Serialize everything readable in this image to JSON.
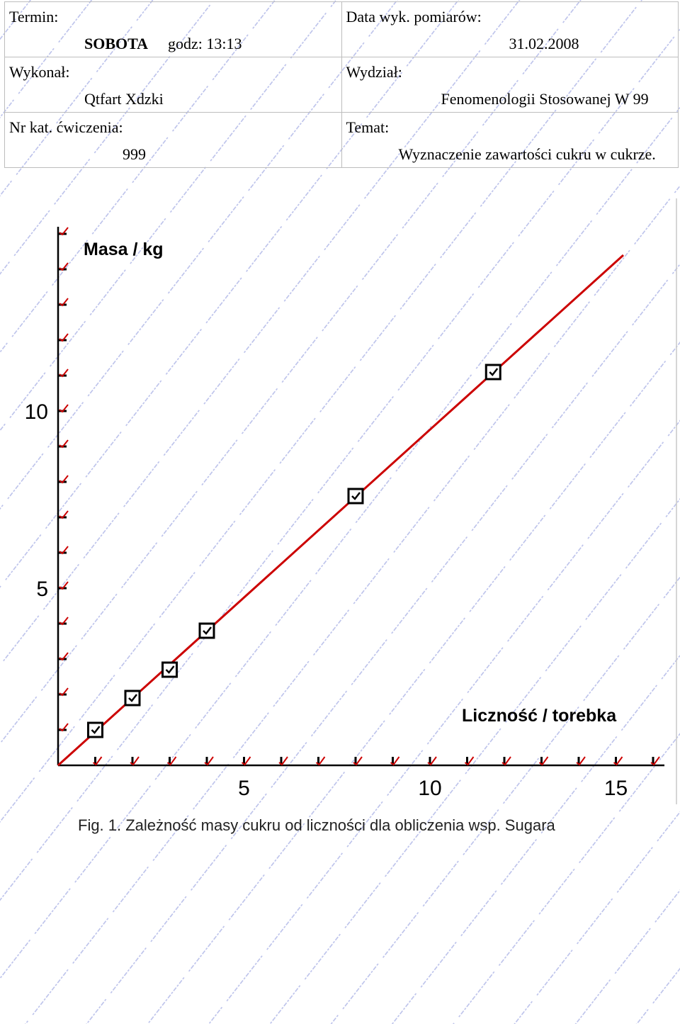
{
  "header": {
    "termin_label": "Termin:",
    "termin_day": "SOBOTA",
    "termin_time": "godz: 13:13",
    "date_label": "Data wyk. pomiarów:",
    "date_value": "31.02.2008",
    "wykonal_label": "Wykonał:",
    "wykonal_value": "Qtfart Xdzki",
    "wydzial_label": "Wydział:",
    "wydzial_value": "Fenomenologii Stosowanej W 99",
    "nrkat_label": "Nr kat. ćwiczenia:",
    "nrkat_value": "999",
    "temat_label": "Temat:",
    "temat_value": "Wyznaczenie zawartości cukru w cukrze."
  },
  "chart_data": {
    "type": "scatter",
    "ylabel": "Masa / kg",
    "xlabel": "Liczność / torebka",
    "caption": "Fig. 1. Zależność masy cukru od liczności dla obliczenia wsp. Sugara",
    "xlim": [
      0,
      16.5
    ],
    "ylim": [
      0,
      15
    ],
    "x_ticks": [
      5,
      10,
      15
    ],
    "y_ticks": [
      5,
      10
    ],
    "x_minor_step": 1,
    "y_minor_step": 1,
    "series": [
      {
        "values_x": [
          1,
          2,
          3,
          4,
          8,
          11.7
        ],
        "values_y": [
          1,
          1.9,
          2.7,
          3.8,
          7.6,
          11.1
        ],
        "marker": "checkbox"
      }
    ],
    "fit_line": {
      "x": [
        0,
        15.2
      ],
      "y": [
        0,
        14.4
      ],
      "color": "#cc0000"
    },
    "colors": {
      "axis": "#000000",
      "line": "#cc0000",
      "tick_mark": "#cc0000"
    }
  }
}
